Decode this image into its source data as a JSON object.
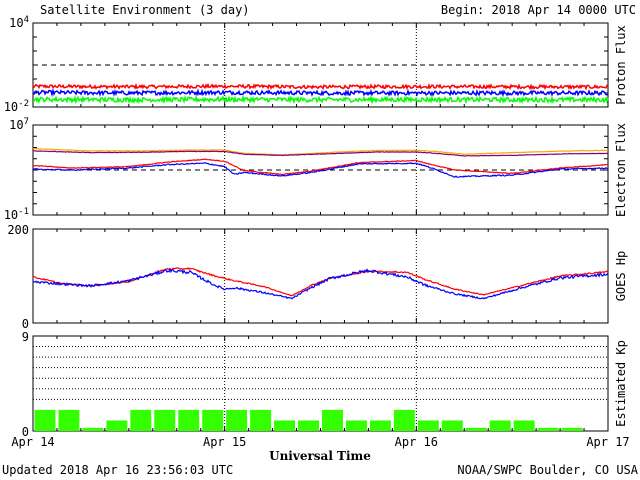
{
  "title": "Satellite Environment (3 day)",
  "begin_label": "Begin:  2018 Apr 14 0000 UTC",
  "updated_label": "Updated 2018 Apr 16 23:56:03 UTC",
  "credit": "NOAA/SWPC Boulder, CO USA",
  "x_axis_title": "Universal Time",
  "colors": {
    "red": "#ff0000",
    "blue": "#0000ff",
    "green": "#00ff00",
    "orange": "#ffa500",
    "purple": "#800080",
    "bar_fill": "#33ff00"
  },
  "chart_data": [
    {
      "type": "line",
      "title": "",
      "ylabel": "Proton Flux",
      "y_scale": "log",
      "ylim": [
        0.01,
        10000
      ],
      "y_tick_labels": [
        {
          "base": "10",
          "exp": "4",
          "value": 10000
        },
        {
          "base": "10",
          "exp": "-2",
          "value": 0.01
        }
      ],
      "threshold": 10,
      "x_tick_labels": [
        "Apr 14",
        "Apr 15",
        "Apr 16",
        "Apr 17"
      ],
      "x_range_days": [
        0,
        3
      ],
      "series": [
        {
          "color_key": "red",
          "x": [
            0,
            0.5,
            1,
            1.5,
            2,
            2.5,
            3
          ],
          "values": [
            0.3,
            0.28,
            0.3,
            0.27,
            0.29,
            0.28,
            0.27
          ],
          "noise": 0.12
        },
        {
          "color_key": "blue",
          "x": [
            0,
            0.5,
            1,
            1.5,
            2,
            2.5,
            3
          ],
          "values": [
            0.11,
            0.1,
            0.11,
            0.1,
            0.1,
            0.1,
            0.1
          ],
          "noise": 0.14
        },
        {
          "color_key": "green",
          "x": [
            0,
            0.5,
            1,
            1.5,
            2,
            2.5,
            3
          ],
          "values": [
            0.035,
            0.033,
            0.035,
            0.033,
            0.034,
            0.033,
            0.033
          ],
          "noise": 0.16
        }
      ]
    },
    {
      "type": "line",
      "title": "",
      "ylabel": "Electron Flux",
      "y_scale": "log",
      "ylim": [
        0.1,
        10000000
      ],
      "y_tick_labels": [
        {
          "base": "10",
          "exp": "7",
          "value": 10000000
        },
        {
          "base": "10",
          "exp": "-1",
          "value": 0.1
        }
      ],
      "threshold": 1000,
      "x_tick_labels": [
        "Apr 14",
        "Apr 15",
        "Apr 16",
        "Apr 17"
      ],
      "x_range_days": [
        0,
        3
      ],
      "series": [
        {
          "color_key": "orange",
          "x": [
            0,
            0.3,
            0.6,
            0.8,
            1,
            1.1,
            1.3,
            1.6,
            1.8,
            2,
            2.1,
            2.25,
            2.5,
            2.8,
            3
          ],
          "values": [
            80000,
            50000,
            50000,
            60000,
            60000,
            30000,
            22000,
            40000,
            55000,
            55000,
            45000,
            25000,
            35000,
            50000,
            55000
          ],
          "noise": 0.02
        },
        {
          "color_key": "purple",
          "x": [
            0,
            0.3,
            0.6,
            0.8,
            1,
            1.1,
            1.3,
            1.6,
            1.8,
            2,
            2.1,
            2.25,
            2.5,
            2.8,
            3
          ],
          "values": [
            50000,
            35000,
            38000,
            45000,
            45000,
            25000,
            20000,
            30000,
            40000,
            40000,
            30000,
            18000,
            20000,
            28000,
            30000
          ],
          "noise": 0.02
        },
        {
          "color_key": "red",
          "x": [
            0,
            0.2,
            0.5,
            0.7,
            0.9,
            1,
            1.1,
            1.3,
            1.45,
            1.7,
            2,
            2.05,
            2.2,
            2.5,
            2.75,
            3
          ],
          "values": [
            2500,
            1500,
            2000,
            5000,
            9000,
            6000,
            900,
            400,
            800,
            4500,
            7000,
            4000,
            1000,
            500,
            1500,
            3000
          ],
          "noise": 0.03
        },
        {
          "color_key": "blue",
          "x": [
            0,
            0.2,
            0.5,
            0.7,
            0.9,
            1,
            1.05,
            1.1,
            1.3,
            1.45,
            1.7,
            2,
            2.08,
            2.2,
            2.5,
            2.75,
            3
          ],
          "values": [
            1200,
            1000,
            1500,
            3000,
            4000,
            2000,
            400,
            600,
            300,
            600,
            3500,
            4000,
            1500,
            250,
            350,
            1200,
            1500
          ],
          "noise": 0.05
        }
      ]
    },
    {
      "type": "line",
      "title": "",
      "ylabel": "GOES Hp",
      "y_scale": "linear",
      "ylim": [
        0,
        200
      ],
      "y_ticks": [
        0,
        200
      ],
      "x_tick_labels": [
        "Apr 14",
        "Apr 15",
        "Apr 16",
        "Apr 17"
      ],
      "x_range_days": [
        0,
        3
      ],
      "series": [
        {
          "color_key": "red",
          "x": [
            0,
            0.15,
            0.3,
            0.5,
            0.7,
            0.82,
            0.95,
            1.05,
            1.2,
            1.35,
            1.45,
            1.55,
            1.75,
            1.95,
            2.05,
            2.2,
            2.35,
            2.55,
            2.75,
            3
          ],
          "values": [
            98,
            84,
            79,
            88,
            115,
            116,
            100,
            90,
            78,
            58,
            80,
            95,
            110,
            108,
            92,
            72,
            60,
            80,
            100,
            109
          ],
          "noise": 0.015
        },
        {
          "color_key": "blue",
          "x": [
            0,
            0.15,
            0.3,
            0.5,
            0.7,
            0.82,
            0.95,
            1,
            1.05,
            1.2,
            1.35,
            1.45,
            1.55,
            1.75,
            1.95,
            2.05,
            2.2,
            2.35,
            2.55,
            2.75,
            3
          ],
          "values": [
            88,
            83,
            79,
            90,
            112,
            108,
            80,
            72,
            75,
            65,
            52,
            75,
            95,
            112,
            98,
            80,
            62,
            52,
            75,
            96,
            104
          ],
          "noise": 0.03
        }
      ]
    },
    {
      "type": "bar",
      "title": "",
      "ylabel": "Estimated Kp",
      "ylim": [
        0,
        9
      ],
      "y_ticks": [
        0,
        9
      ],
      "gridlines": [
        3,
        4,
        5,
        6,
        7,
        8,
        9
      ],
      "x_tick_labels": [
        "Apr 14",
        "Apr 15",
        "Apr 16",
        "Apr 17"
      ],
      "x_range_days": [
        0,
        3
      ],
      "bin_hours": 3,
      "values": [
        2,
        2,
        0.3,
        1,
        2,
        2,
        2,
        2,
        2,
        2,
        1,
        1,
        2,
        1,
        1,
        2,
        1,
        1,
        0.3,
        1,
        1,
        0.3,
        0.3,
        0
      ]
    }
  ]
}
